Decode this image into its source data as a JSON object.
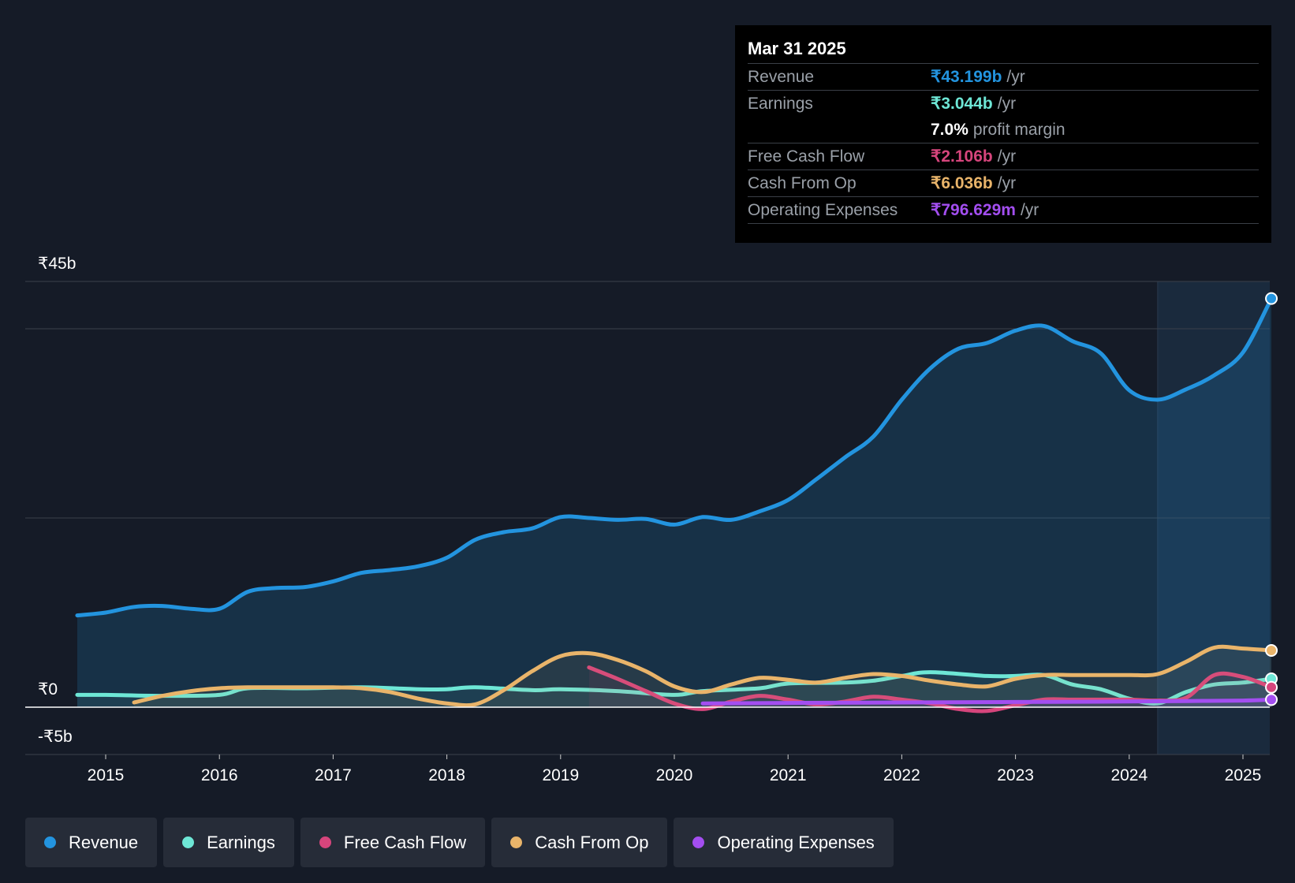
{
  "tooltip": {
    "date": "Mar 31 2025",
    "rows": [
      {
        "label": "Revenue",
        "value": "₹43.199b",
        "unit": "/yr",
        "color": "#2394df"
      },
      {
        "label": "Earnings",
        "value": "₹3.044b",
        "unit": "/yr",
        "color": "#6ee7d6"
      },
      {
        "label": "",
        "value": "7.0%",
        "unit": "profit margin",
        "color": "#ffffff"
      },
      {
        "label": "Free Cash Flow",
        "value": "₹2.106b",
        "unit": "/yr",
        "color": "#d6457c"
      },
      {
        "label": "Cash From Op",
        "value": "₹6.036b",
        "unit": "/yr",
        "color": "#e9b46a"
      },
      {
        "label": "Operating Expenses",
        "value": "₹796.629m",
        "unit": "/yr",
        "color": "#a34ef0"
      }
    ]
  },
  "legend": [
    {
      "label": "Revenue",
      "color": "#2394df"
    },
    {
      "label": "Earnings",
      "color": "#6ee7d6"
    },
    {
      "label": "Free Cash Flow",
      "color": "#d6457c"
    },
    {
      "label": "Cash From Op",
      "color": "#e9b46a"
    },
    {
      "label": "Operating Expenses",
      "color": "#a34ef0"
    }
  ],
  "chart_data": {
    "type": "line",
    "y_ticks": [
      {
        "value": 45,
        "label": "₹45b"
      },
      {
        "value": 0,
        "label": "₹0"
      },
      {
        "value": -5,
        "label": "-₹5b"
      }
    ],
    "x_ticks": [
      "2015",
      "2016",
      "2017",
      "2018",
      "2019",
      "2020",
      "2021",
      "2022",
      "2023",
      "2024",
      "2025"
    ],
    "ylim": [
      -5,
      45
    ],
    "xlim": [
      2014.5,
      2025.25
    ],
    "highlight_start": 2024.25,
    "series": [
      {
        "name": "Revenue",
        "color": "#2394df",
        "fill": true,
        "x": [
          2014.75,
          2015.0,
          2015.25,
          2015.5,
          2015.75,
          2016.0,
          2016.25,
          2016.5,
          2016.75,
          2017.0,
          2017.25,
          2017.5,
          2017.75,
          2018.0,
          2018.25,
          2018.5,
          2018.75,
          2019.0,
          2019.25,
          2019.5,
          2019.75,
          2020.0,
          2020.25,
          2020.5,
          2020.75,
          2021.0,
          2021.25,
          2021.5,
          2021.75,
          2022.0,
          2022.25,
          2022.5,
          2022.75,
          2023.0,
          2023.25,
          2023.5,
          2023.75,
          2024.0,
          2024.25,
          2024.5,
          2024.75,
          2025.0,
          2025.25
        ],
        "y": [
          9.7,
          10.0,
          10.6,
          10.7,
          10.4,
          10.4,
          12.2,
          12.6,
          12.7,
          13.3,
          14.2,
          14.5,
          14.9,
          15.8,
          17.7,
          18.5,
          18.9,
          20.1,
          20.0,
          19.8,
          19.9,
          19.3,
          20.1,
          19.8,
          20.7,
          21.9,
          24.1,
          26.4,
          28.6,
          32.5,
          35.8,
          37.9,
          38.5,
          39.8,
          40.3,
          38.7,
          37.4,
          33.5,
          32.5,
          33.6,
          35.1,
          37.5,
          43.2
        ]
      },
      {
        "name": "Earnings",
        "color": "#6ee7d6",
        "fill": false,
        "x": [
          2014.75,
          2015.0,
          2015.5,
          2016.0,
          2016.25,
          2016.75,
          2017.25,
          2017.75,
          2018.0,
          2018.25,
          2018.75,
          2019.0,
          2019.5,
          2020.0,
          2020.25,
          2020.75,
          2021.0,
          2021.5,
          2021.75,
          2022.0,
          2022.25,
          2022.75,
          2023.0,
          2023.25,
          2023.5,
          2023.75,
          2024.0,
          2024.25,
          2024.5,
          2024.75,
          2025.0,
          2025.25
        ],
        "y": [
          1.3,
          1.3,
          1.2,
          1.3,
          2.0,
          2.0,
          2.1,
          1.9,
          1.9,
          2.1,
          1.8,
          1.9,
          1.7,
          1.3,
          1.7,
          2.0,
          2.5,
          2.6,
          2.8,
          3.3,
          3.7,
          3.3,
          3.3,
          3.4,
          2.4,
          1.9,
          0.9,
          0.4,
          1.6,
          2.4,
          2.6,
          3.0
        ]
      },
      {
        "name": "Free Cash Flow",
        "color": "#d6457c",
        "fill": false,
        "x": [
          2019.25,
          2019.5,
          2019.75,
          2020.0,
          2020.25,
          2020.5,
          2020.75,
          2021.0,
          2021.25,
          2021.5,
          2021.75,
          2022.0,
          2022.25,
          2022.5,
          2022.75,
          2023.0,
          2023.25,
          2023.5,
          2023.75,
          2024.0,
          2024.25,
          2024.5,
          2024.75,
          2025.0,
          2025.25
        ],
        "y": [
          4.2,
          3.0,
          1.7,
          0.4,
          -0.2,
          0.6,
          1.2,
          0.8,
          0.3,
          0.6,
          1.1,
          0.8,
          0.4,
          -0.2,
          -0.4,
          0.2,
          0.8,
          0.8,
          0.8,
          0.8,
          0.7,
          1.0,
          3.4,
          3.2,
          2.1
        ]
      },
      {
        "name": "Cash From Op",
        "color": "#e9b46a",
        "fill": false,
        "x": [
          2015.25,
          2015.5,
          2015.75,
          2016.0,
          2016.25,
          2016.5,
          2016.75,
          2017.0,
          2017.25,
          2017.5,
          2017.75,
          2018.0,
          2018.25,
          2018.5,
          2018.75,
          2019.0,
          2019.25,
          2019.5,
          2019.75,
          2020.0,
          2020.25,
          2020.5,
          2020.75,
          2021.0,
          2021.25,
          2021.5,
          2021.75,
          2022.0,
          2022.25,
          2022.5,
          2022.75,
          2023.0,
          2023.25,
          2023.5,
          2023.75,
          2024.0,
          2024.25,
          2024.5,
          2024.75,
          2025.0,
          2025.25
        ],
        "y": [
          0.5,
          1.2,
          1.7,
          2.0,
          2.1,
          2.1,
          2.1,
          2.1,
          2.0,
          1.6,
          0.9,
          0.4,
          0.3,
          1.8,
          3.8,
          5.4,
          5.7,
          5.0,
          3.8,
          2.2,
          1.6,
          2.4,
          3.1,
          2.9,
          2.6,
          3.1,
          3.5,
          3.3,
          2.8,
          2.4,
          2.2,
          3.0,
          3.4,
          3.4,
          3.4,
          3.4,
          3.5,
          4.8,
          6.3,
          6.2,
          6.0
        ]
      },
      {
        "name": "Operating Expenses",
        "color": "#a34ef0",
        "fill": false,
        "x": [
          2020.25,
          2021.0,
          2022.0,
          2023.0,
          2024.0,
          2024.5,
          2025.0,
          2025.25
        ],
        "y": [
          0.4,
          0.45,
          0.5,
          0.55,
          0.6,
          0.65,
          0.7,
          0.8
        ]
      }
    ]
  }
}
